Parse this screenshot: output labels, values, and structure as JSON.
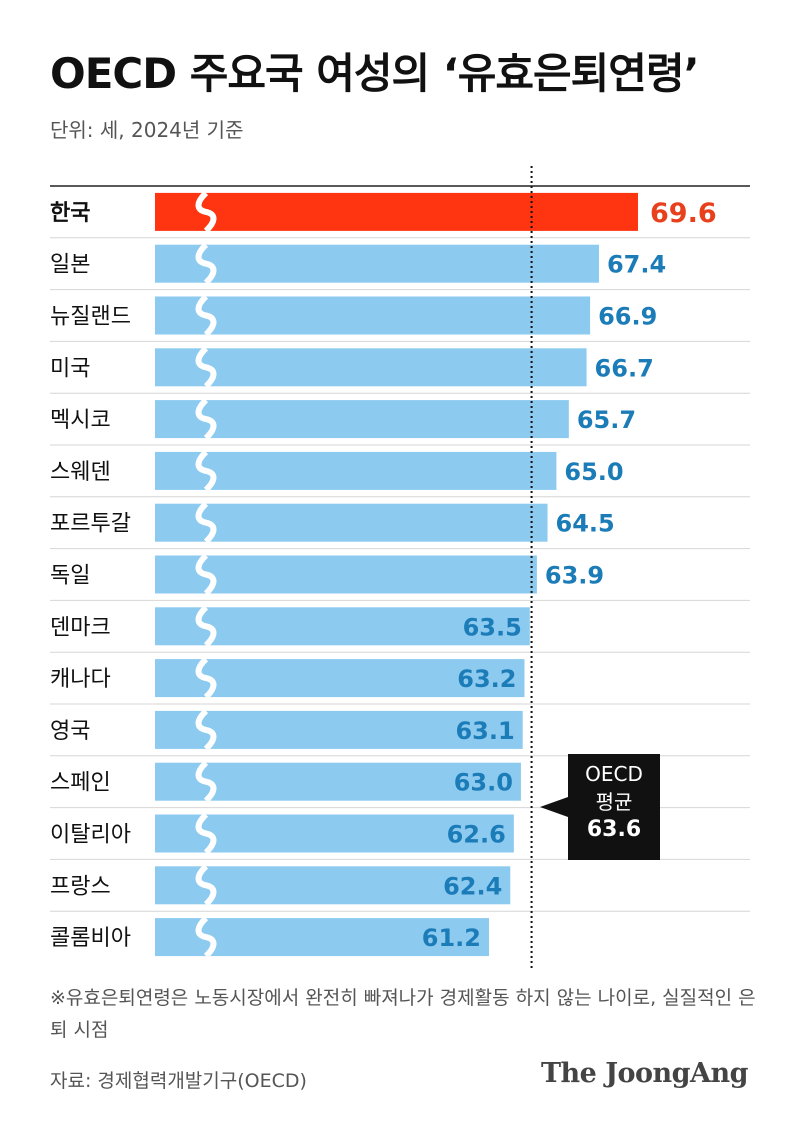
{
  "header": {
    "title": "OECD 주요국 여성의 ‘유효은퇴연령’",
    "subtitle": "단위: 세, 2024년 기준"
  },
  "chart_data": {
    "type": "bar",
    "orientation": "horizontal",
    "categories": [
      "한국",
      "일본",
      "뉴질랜드",
      "미국",
      "멕시코",
      "스웨덴",
      "포르투갈",
      "독일",
      "덴마크",
      "캐나다",
      "영국",
      "스페인",
      "이탈리아",
      "프랑스",
      "콜롬비아"
    ],
    "values": [
      69.6,
      67.4,
      66.9,
      66.7,
      65.7,
      65.0,
      64.5,
      63.9,
      63.5,
      63.2,
      63.1,
      63.0,
      62.6,
      62.4,
      61.2
    ],
    "value_labels": [
      "69.6",
      "67.4",
      "66.9",
      "66.7",
      "65.7",
      "65.0",
      "64.5",
      "63.9",
      "63.5",
      "63.2",
      "63.1",
      "63.0",
      "62.6",
      "62.4",
      "61.2"
    ],
    "highlight_category": "한국",
    "axis_break": true,
    "reference_line": {
      "label_line1": "OECD",
      "label_line2": "평균",
      "value": 63.6,
      "value_label": "63.6",
      "style": "dotted"
    },
    "colors": {
      "highlight": "#ff3512",
      "highlight_label": "#e8401c",
      "bar": "#8ccaf0",
      "label": "#1b7cb8"
    }
  },
  "footer": {
    "note": "※유효은퇴연령은 노동시장에서 완전히 빠져나가 경제활동 하지 않는 나이로, 실질적인 은퇴 시점",
    "source": "자료: 경제협력개발기구(OECD)",
    "brand": "The JoongAng"
  }
}
